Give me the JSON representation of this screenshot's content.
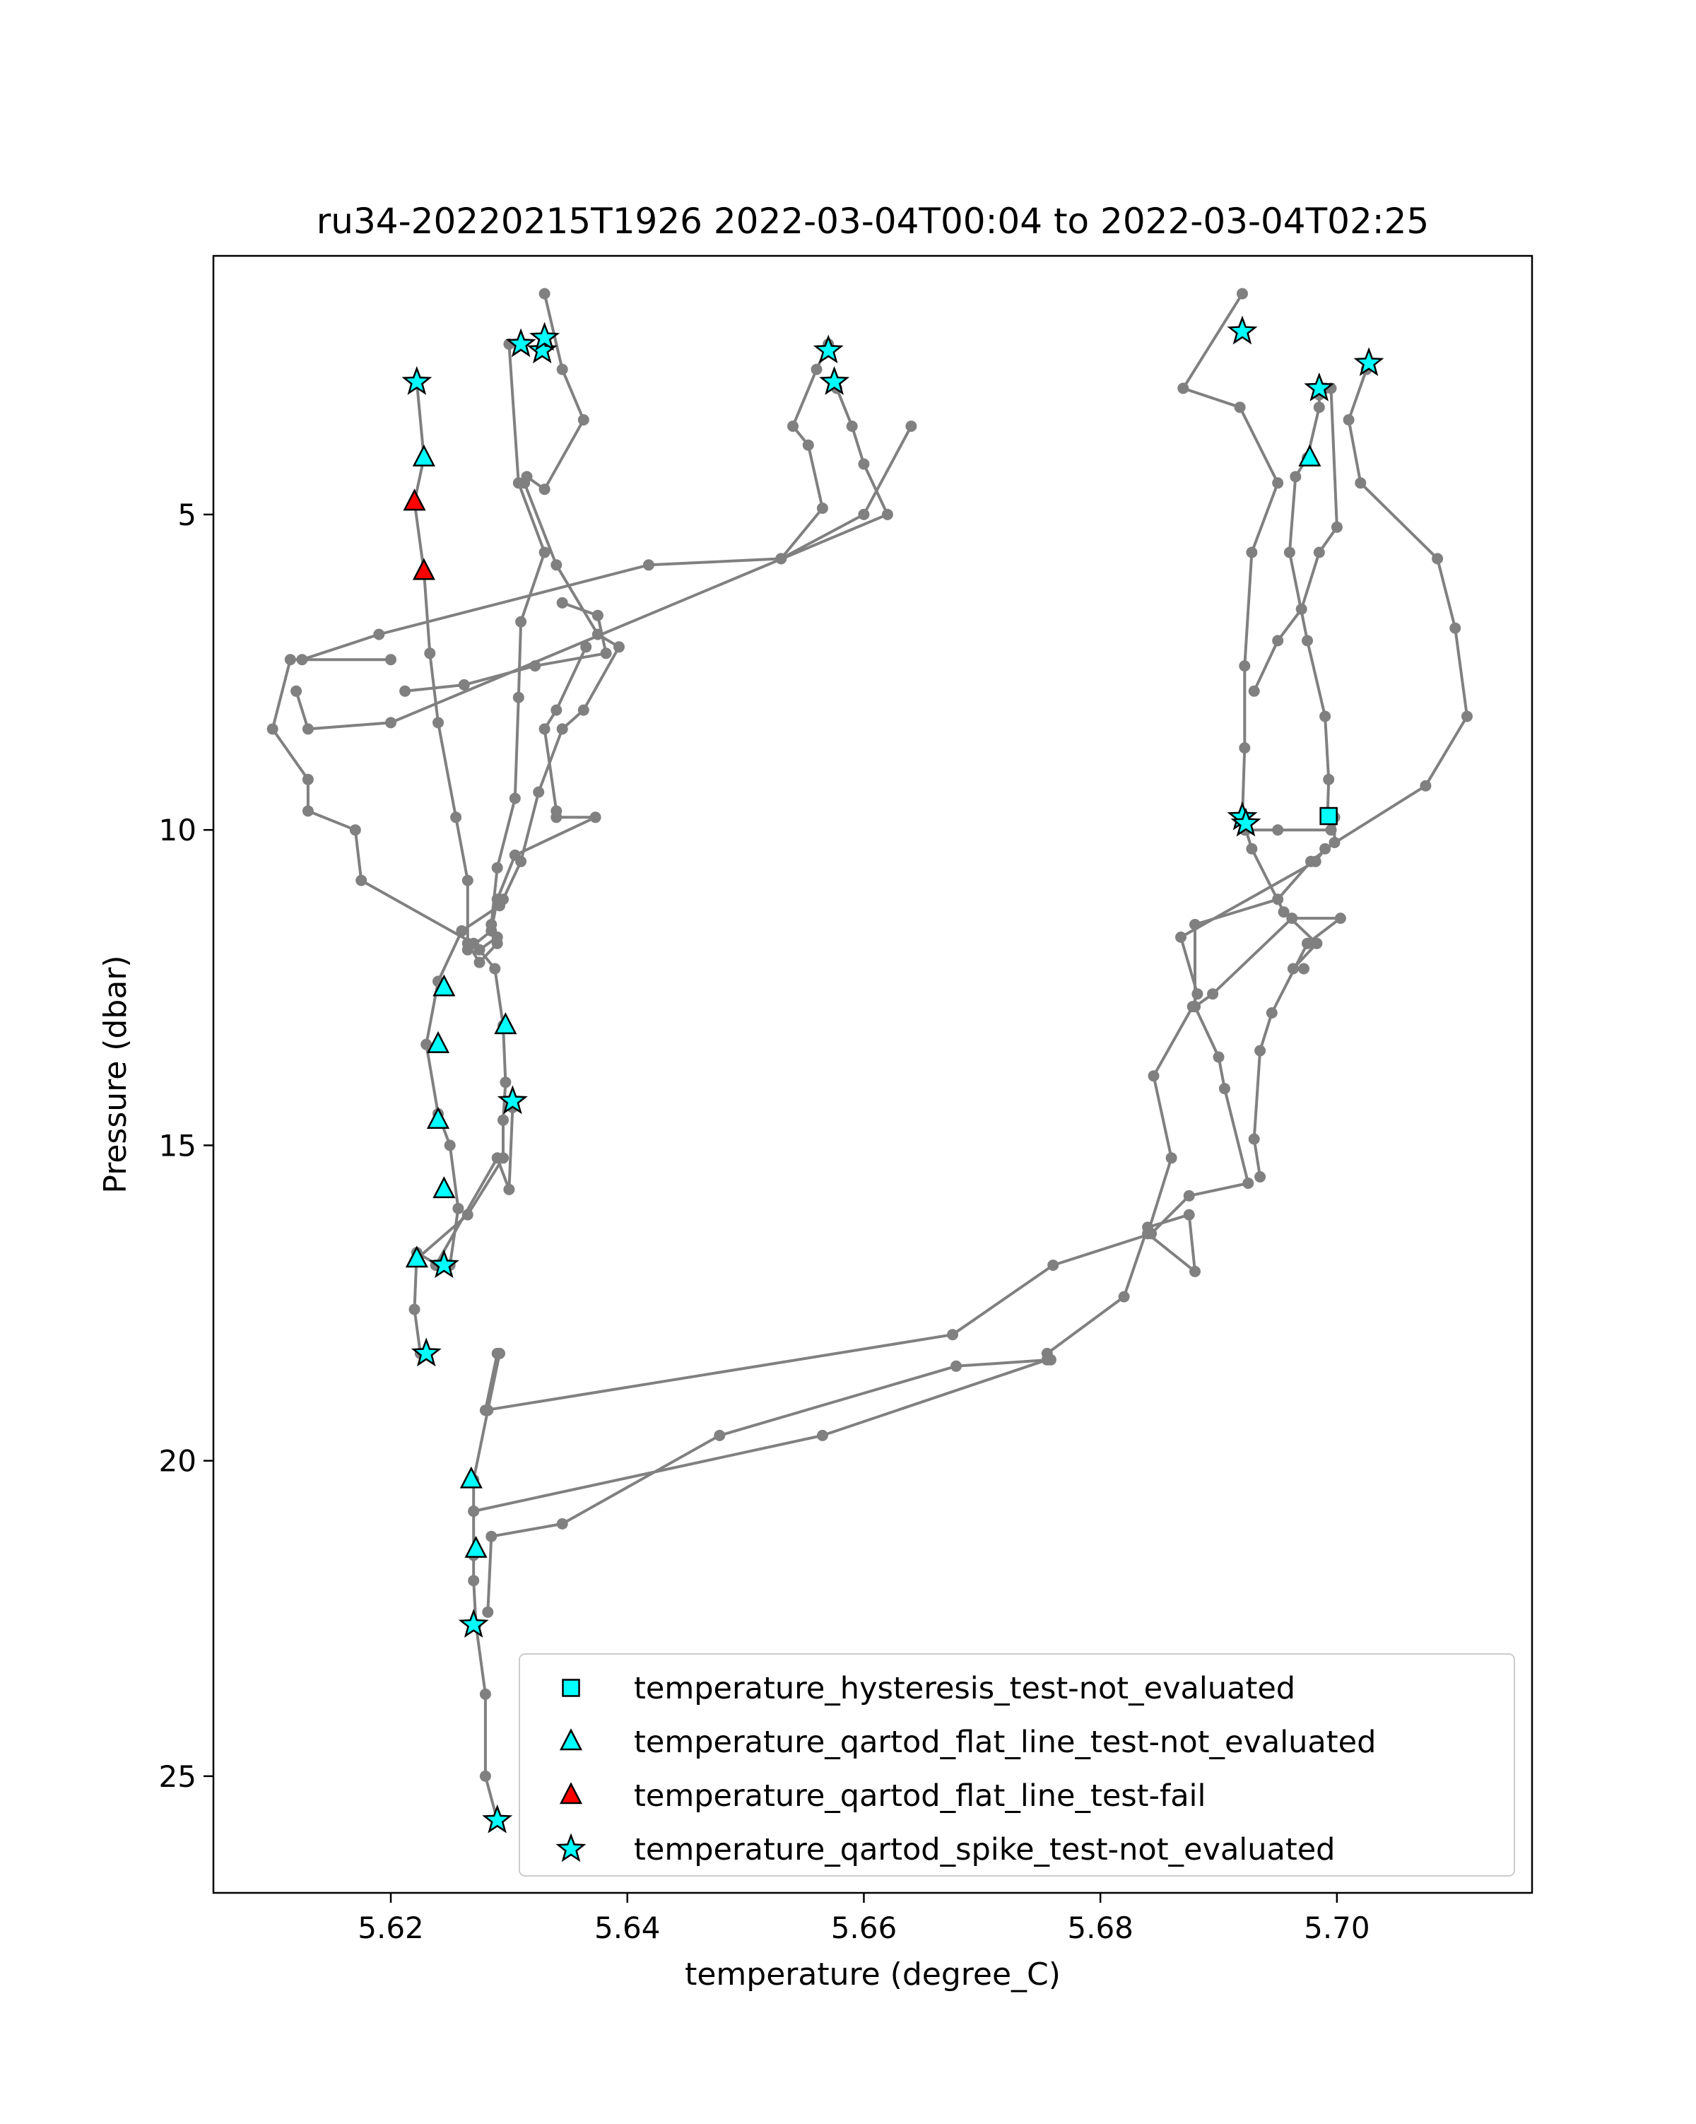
{
  "chart_data": {
    "type": "scatter",
    "title": "ru34-20220215T1926 2022-03-04T00:04 to 2022-03-04T02:25",
    "xlabel": "temperature (degree_C)",
    "ylabel": "Pressure (dbar)",
    "xlim": [
      5.605,
      5.7165
    ],
    "ylim": [
      26.85,
      0.9
    ],
    "y_inverted": true,
    "grid": false,
    "legend_position": "lower-right",
    "xticks": [
      5.62,
      5.64,
      5.66,
      5.68,
      5.7
    ],
    "xtick_labels": [
      "5.62",
      "5.64",
      "5.66",
      "5.68",
      "5.70"
    ],
    "yticks": [
      5,
      10,
      15,
      20,
      25
    ],
    "ytick_labels": [
      "5",
      "10",
      "15",
      "20",
      "25"
    ],
    "profile_color": "#808080",
    "profiles": [
      [
        [
          5.63,
          2.3
        ],
        [
          5.6308,
          4.5
        ],
        [
          5.633,
          5.6
        ],
        [
          5.631,
          6.7
        ],
        [
          5.6308,
          7.9
        ],
        [
          5.6305,
          9.5
        ],
        [
          5.629,
          10.6
        ],
        [
          5.6285,
          11.5
        ],
        [
          5.629,
          11.7
        ],
        [
          5.6275,
          11.9
        ],
        [
          5.6288,
          12.2
        ],
        [
          5.6295,
          13.1
        ],
        [
          5.6297,
          14.0
        ],
        [
          5.6295,
          14.6
        ],
        [
          5.6295,
          15.2
        ],
        [
          5.6265,
          16.1
        ],
        [
          5.6222,
          16.8
        ]
      ],
      [
        [
          5.633,
          1.5
        ],
        [
          5.6345,
          2.7
        ],
        [
          5.6363,
          3.5
        ],
        [
          5.633,
          4.6
        ],
        [
          5.6315,
          4.4
        ],
        [
          5.6313,
          4.5
        ],
        [
          5.634,
          5.8
        ],
        [
          5.6375,
          6.9
        ],
        [
          5.6393,
          7.1
        ],
        [
          5.6363,
          8.1
        ],
        [
          5.6345,
          8.4
        ],
        [
          5.6325,
          9.4
        ],
        [
          5.631,
          10.5
        ],
        [
          5.6295,
          11.1
        ],
        [
          5.6292,
          11.2
        ],
        [
          5.626,
          11.6
        ],
        [
          5.624,
          12.4
        ],
        [
          5.623,
          13.4
        ],
        [
          5.624,
          14.5
        ],
        [
          5.625,
          15.0
        ],
        [
          5.6257,
          16.0
        ],
        [
          5.625,
          16.9
        ]
      ],
      [
        [
          5.624,
          16.9
        ],
        [
          5.6222,
          16.7
        ],
        [
          5.622,
          17.6
        ],
        [
          5.6225,
          18.3
        ],
        [
          5.623,
          18.3
        ]
      ],
      [
        [
          5.6222,
          2.9
        ],
        [
          5.6228,
          4.1
        ],
        [
          5.622,
          4.8
        ],
        [
          5.6228,
          5.9
        ],
        [
          5.6233,
          7.2
        ],
        [
          5.624,
          8.3
        ],
        [
          5.6255,
          9.8
        ],
        [
          5.6265,
          10.8
        ],
        [
          5.6265,
          11.8
        ],
        [
          5.6275,
          12.1
        ],
        [
          5.629,
          11.8
        ]
      ],
      [
        [
          5.6303,
          14.4
        ],
        [
          5.63,
          15.7
        ],
        [
          5.629,
          15.2
        ],
        [
          5.6238,
          16.9
        ]
      ],
      [
        [
          5.62,
          7.3
        ],
        [
          5.6115,
          7.3
        ],
        [
          5.61,
          8.4
        ],
        [
          5.613,
          9.2
        ],
        [
          5.613,
          9.7
        ],
        [
          5.617,
          10.0
        ],
        [
          5.6175,
          10.8
        ],
        [
          5.627,
          11.8
        ]
      ],
      [
        [
          5.6212,
          7.8
        ],
        [
          5.6262,
          7.7
        ],
        [
          5.6322,
          7.4
        ],
        [
          5.6382,
          7.2
        ],
        [
          5.6375,
          6.6
        ],
        [
          5.6345,
          6.4
        ]
      ],
      [
        [
          5.6365,
          7.1
        ],
        [
          5.634,
          8.1
        ],
        [
          5.633,
          8.4
        ],
        [
          5.634,
          9.7
        ],
        [
          5.634,
          9.8
        ],
        [
          5.6373,
          9.8
        ],
        [
          5.6305,
          10.4
        ],
        [
          5.629,
          11.1
        ],
        [
          5.6285,
          11.6
        ],
        [
          5.6265,
          11.9
        ]
      ],
      [
        [
          5.612,
          7.8
        ],
        [
          5.613,
          8.4
        ],
        [
          5.62,
          8.3
        ],
        [
          5.662,
          5.0
        ],
        [
          5.66,
          4.2
        ],
        [
          5.659,
          3.6
        ],
        [
          5.6577,
          3.0
        ],
        [
          5.6575,
          2.9
        ]
      ],
      [
        [
          5.6125,
          7.3
        ],
        [
          5.619,
          6.9
        ],
        [
          5.6418,
          5.8
        ],
        [
          5.653,
          5.7
        ],
        [
          5.6565,
          4.9
        ],
        [
          5.6553,
          3.9
        ],
        [
          5.654,
          3.6
        ],
        [
          5.656,
          2.7
        ],
        [
          5.657,
          2.3
        ]
      ],
      [
        [
          5.664,
          3.6
        ],
        [
          5.66,
          5.0
        ],
        [
          5.653,
          5.7
        ]
      ],
      [
        [
          5.6292,
          18.3
        ],
        [
          5.6282,
          19.2
        ],
        [
          5.627,
          20.3
        ],
        [
          5.627,
          20.8
        ],
        [
          5.627,
          21.5
        ],
        [
          5.627,
          21.9
        ],
        [
          5.6272,
          22.6
        ],
        [
          5.628,
          23.7
        ],
        [
          5.628,
          25.0
        ],
        [
          5.629,
          25.7
        ]
      ],
      [
        [
          5.629,
          18.3
        ],
        [
          5.628,
          19.2
        ],
        [
          5.6675,
          18.0
        ],
        [
          5.676,
          16.9
        ],
        [
          5.6843,
          16.4
        ],
        [
          5.6875,
          15.8
        ],
        [
          5.6925,
          15.6
        ],
        [
          5.6905,
          14.1
        ],
        [
          5.69,
          13.6
        ],
        [
          5.688,
          12.8
        ],
        [
          5.6895,
          12.6
        ],
        [
          5.6962,
          11.4
        ],
        [
          5.7003,
          11.4
        ],
        [
          5.6975,
          11.8
        ],
        [
          5.6945,
          12.9
        ],
        [
          5.6935,
          13.5
        ],
        [
          5.693,
          14.9
        ],
        [
          5.6935,
          15.5
        ]
      ],
      [
        [
          5.627,
          20.8
        ],
        [
          5.6565,
          19.6
        ],
        [
          5.6755,
          18.4
        ],
        [
          5.6755,
          18.3
        ],
        [
          5.682,
          17.4
        ],
        [
          5.684,
          16.3
        ],
        [
          5.6875,
          16.1
        ],
        [
          5.688,
          17.0
        ],
        [
          5.684,
          16.4
        ],
        [
          5.686,
          15.2
        ],
        [
          5.6845,
          13.9
        ],
        [
          5.6878,
          12.8
        ],
        [
          5.6882,
          12.6
        ],
        [
          5.6868,
          11.7
        ],
        [
          5.6982,
          10.5
        ],
        [
          5.699,
          10.3
        ],
        [
          5.7075,
          9.3
        ],
        [
          5.711,
          8.2
        ],
        [
          5.71,
          6.8
        ],
        [
          5.7085,
          5.7
        ],
        [
          5.702,
          4.5
        ],
        [
          5.701,
          3.5
        ],
        [
          5.7025,
          2.7
        ]
      ],
      [
        [
          5.6282,
          22.4
        ],
        [
          5.6285,
          21.2
        ],
        [
          5.6345,
          21.0
        ],
        [
          5.6478,
          19.6
        ],
        [
          5.6678,
          18.5
        ],
        [
          5.6758,
          18.4
        ]
      ],
      [
        [
          5.692,
          1.5
        ],
        [
          5.687,
          3.0
        ],
        [
          5.6918,
          3.3
        ],
        [
          5.695,
          4.5
        ],
        [
          5.6928,
          5.6
        ],
        [
          5.6922,
          7.4
        ],
        [
          5.6922,
          8.7
        ],
        [
          5.692,
          9.8
        ],
        [
          5.6922,
          10.0
        ],
        [
          5.695,
          10.0
        ],
        [
          5.6995,
          10.0
        ],
        [
          5.6992,
          9.8
        ],
        [
          5.6993,
          9.2
        ],
        [
          5.699,
          8.2
        ],
        [
          5.6975,
          7.0
        ],
        [
          5.696,
          5.6
        ],
        [
          5.6965,
          4.4
        ],
        [
          5.6975,
          4.1
        ],
        [
          5.6985,
          3.3
        ],
        [
          5.6985,
          3.1
        ],
        [
          5.6985,
          3.1
        ],
        [
          5.699,
          3.0
        ],
        [
          5.6995,
          3.0
        ],
        [
          5.7,
          5.2
        ],
        [
          5.6985,
          5.6
        ],
        [
          5.697,
          6.5
        ],
        [
          5.695,
          7.0
        ],
        [
          5.693,
          7.8
        ]
      ],
      [
        [
          5.6923,
          10.0
        ],
        [
          5.6928,
          10.3
        ],
        [
          5.6955,
          11.3
        ],
        [
          5.6983,
          11.8
        ],
        [
          5.6963,
          12.2
        ],
        [
          5.6972,
          12.2
        ]
      ],
      [
        [
          5.6998,
          9.8
        ],
        [
          5.6998,
          10.2
        ],
        [
          5.6978,
          10.5
        ],
        [
          5.695,
          11.1
        ],
        [
          5.688,
          11.5
        ],
        [
          5.688,
          12.8
        ]
      ]
    ],
    "series": [
      {
        "name": "temperature_hysteresis_test-not_evaluated",
        "marker": "square",
        "color": "#00ffff",
        "points": [
          [
            5.6993,
            9.78
          ]
        ]
      },
      {
        "name": "temperature_qartod_flat_line_test-not_evaluated",
        "marker": "triangle",
        "color": "#00ffff",
        "points": [
          [
            5.6228,
            4.1
          ],
          [
            5.6245,
            12.5
          ],
          [
            5.624,
            13.4
          ],
          [
            5.624,
            14.6
          ],
          [
            5.6245,
            15.7
          ],
          [
            5.6222,
            16.8
          ],
          [
            5.6268,
            20.3
          ],
          [
            5.6272,
            21.4
          ],
          [
            5.6297,
            13.1
          ],
          [
            5.6977,
            4.1
          ]
        ]
      },
      {
        "name": "temperature_qartod_flat_line_test-fail",
        "marker": "triangle",
        "color": "#ff0000",
        "points": [
          [
            5.622,
            4.8
          ],
          [
            5.6228,
            5.9
          ]
        ]
      },
      {
        "name": "temperature_qartod_spike_test-not_evaluated",
        "marker": "star",
        "color": "#00ffff",
        "points": [
          [
            5.6222,
            2.9
          ],
          [
            5.631,
            2.3
          ],
          [
            5.6328,
            2.4
          ],
          [
            5.633,
            2.2
          ],
          [
            5.657,
            2.4
          ],
          [
            5.6575,
            2.9
          ],
          [
            5.692,
            2.1
          ],
          [
            5.6985,
            3.0
          ],
          [
            5.7027,
            2.6
          ],
          [
            5.692,
            9.8
          ],
          [
            5.6923,
            9.9
          ],
          [
            5.6303,
            14.3
          ],
          [
            5.6245,
            16.9
          ],
          [
            5.623,
            18.3
          ],
          [
            5.627,
            22.6
          ],
          [
            5.629,
            25.7
          ]
        ]
      }
    ]
  }
}
